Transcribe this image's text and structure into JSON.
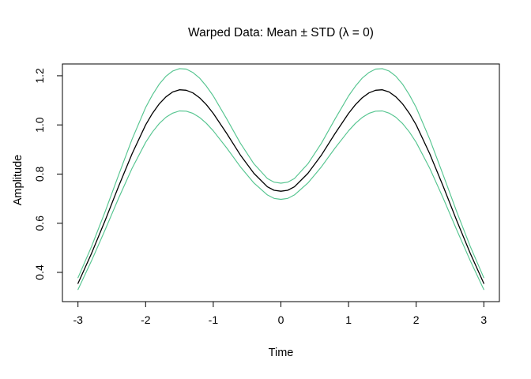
{
  "chart_data": {
    "type": "line",
    "title": "Warped Data: Mean ± STD (λ = 0)",
    "xlabel": "Time",
    "ylabel": "Amplitude",
    "xlim": [
      -3.23,
      3.23
    ],
    "ylim": [
      0.281,
      1.248
    ],
    "grid": false,
    "legend": "none",
    "background": "#ffffff",
    "axis_color": "#000000",
    "x_ticks": [
      {
        "v": -3,
        "label": "-3"
      },
      {
        "v": -2,
        "label": "-2"
      },
      {
        "v": -1,
        "label": "-1"
      },
      {
        "v": 0,
        "label": "0"
      },
      {
        "v": 1,
        "label": "1"
      },
      {
        "v": 2,
        "label": "2"
      },
      {
        "v": 3,
        "label": "3"
      }
    ],
    "y_ticks": [
      {
        "v": 0.4,
        "label": "0.4"
      },
      {
        "v": 0.6,
        "label": "0.6"
      },
      {
        "v": 0.8,
        "label": "0.8"
      },
      {
        "v": 1.0,
        "label": "1.0"
      },
      {
        "v": 1.2,
        "label": "1.2"
      }
    ],
    "colors": {
      "mean": "#000000",
      "std_band": "#56c590"
    },
    "x": [
      -3,
      -2.8,
      -2.6,
      -2.4,
      -2.2,
      -2,
      -1.9,
      -1.8,
      -1.7,
      -1.6,
      -1.5,
      -1.4,
      -1.3,
      -1.2,
      -1.1,
      -1,
      -0.8,
      -0.6,
      -0.4,
      -0.2,
      -0.1,
      0,
      0.1,
      0.2,
      0.4,
      0.6,
      0.8,
      1,
      1.1,
      1.2,
      1.3,
      1.4,
      1.5,
      1.6,
      1.7,
      1.8,
      1.9,
      2,
      2.2,
      2.4,
      2.6,
      2.8,
      3
    ],
    "series": [
      {
        "name": "mean",
        "color": "#000000",
        "width": 1.3,
        "values": [
          0.355,
          0.477,
          0.61,
          0.75,
          0.883,
          1.0,
          1.047,
          1.085,
          1.114,
          1.134,
          1.143,
          1.141,
          1.13,
          1.11,
          1.082,
          1.047,
          0.965,
          0.878,
          0.803,
          0.748,
          0.734,
          0.73,
          0.734,
          0.748,
          0.803,
          0.878,
          0.965,
          1.047,
          1.082,
          1.11,
          1.13,
          1.141,
          1.143,
          1.134,
          1.114,
          1.085,
          1.047,
          1.0,
          0.883,
          0.75,
          0.61,
          0.477,
          0.355
        ]
      },
      {
        "name": "mean-plus-std",
        "color": "#56c590",
        "width": 1.15,
        "values": [
          0.378,
          0.505,
          0.646,
          0.796,
          0.942,
          1.071,
          1.122,
          1.165,
          1.198,
          1.219,
          1.229,
          1.227,
          1.213,
          1.19,
          1.157,
          1.118,
          1.024,
          0.926,
          0.842,
          0.782,
          0.767,
          0.763,
          0.767,
          0.782,
          0.842,
          0.926,
          1.024,
          1.118,
          1.157,
          1.19,
          1.213,
          1.227,
          1.229,
          1.219,
          1.198,
          1.165,
          1.122,
          1.071,
          0.942,
          0.796,
          0.646,
          0.505,
          0.378
        ]
      },
      {
        "name": "mean-minus-std",
        "color": "#56c590",
        "width": 1.15,
        "values": [
          0.33,
          0.447,
          0.572,
          0.702,
          0.824,
          0.929,
          0.971,
          1.005,
          1.031,
          1.048,
          1.057,
          1.056,
          1.047,
          1.03,
          1.006,
          0.976,
          0.906,
          0.83,
          0.764,
          0.715,
          0.701,
          0.697,
          0.701,
          0.715,
          0.764,
          0.83,
          0.906,
          0.976,
          1.006,
          1.03,
          1.047,
          1.056,
          1.057,
          1.048,
          1.031,
          1.005,
          0.971,
          0.929,
          0.824,
          0.702,
          0.572,
          0.447,
          0.33
        ]
      }
    ]
  }
}
